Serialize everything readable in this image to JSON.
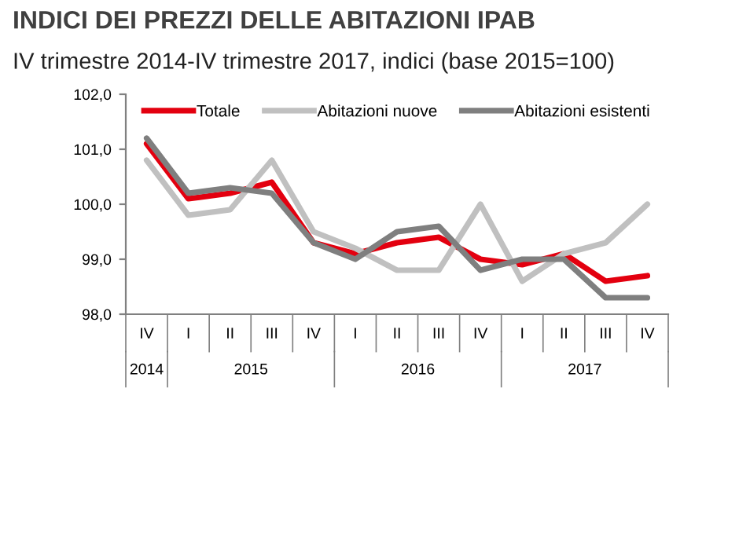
{
  "chart_data": {
    "type": "line",
    "title": "INDICI DEI PREZZI DELLE ABITAZIONI IPAB",
    "subtitle": "IV trimestre 2014-IV trimestre 2017, indici (base 2015=100)",
    "categories": [
      "IV",
      "I",
      "II",
      "III",
      "IV",
      "I",
      "II",
      "III",
      "IV",
      "I",
      "II",
      "III",
      "IV"
    ],
    "annotations": [
      "2014",
      "2015",
      "2016",
      "2017"
    ],
    "series": [
      {
        "name": "Totale",
        "color": "#e3000f",
        "values": [
          101.1,
          100.1,
          100.2,
          100.4,
          99.3,
          99.1,
          99.3,
          99.4,
          99.0,
          98.9,
          99.1,
          98.6,
          98.7
        ]
      },
      {
        "name": "Abitazioni nuove",
        "color": "#c0c0c0",
        "values": [
          100.8,
          99.8,
          99.9,
          100.8,
          99.5,
          99.2,
          98.8,
          98.8,
          100.0,
          98.6,
          99.1,
          99.3,
          100.0
        ]
      },
      {
        "name": "Abitazioni esistenti",
        "color": "#7f7f7f",
        "values": [
          101.2,
          100.2,
          100.3,
          100.2,
          99.3,
          99.0,
          99.5,
          99.6,
          98.8,
          99.0,
          99.0,
          98.3,
          98.3
        ]
      }
    ],
    "ylim": [
      98,
      102
    ],
    "yticks": [
      {
        "value": 98,
        "label": "98,0"
      },
      {
        "value": 99,
        "label": "99,0"
      },
      {
        "value": 100,
        "label": "100,0"
      },
      {
        "value": 101,
        "label": "101,0"
      },
      {
        "value": 102,
        "label": "102,0"
      }
    ],
    "grid": false,
    "legend": "top",
    "marker": "none",
    "line_style": "solid"
  }
}
